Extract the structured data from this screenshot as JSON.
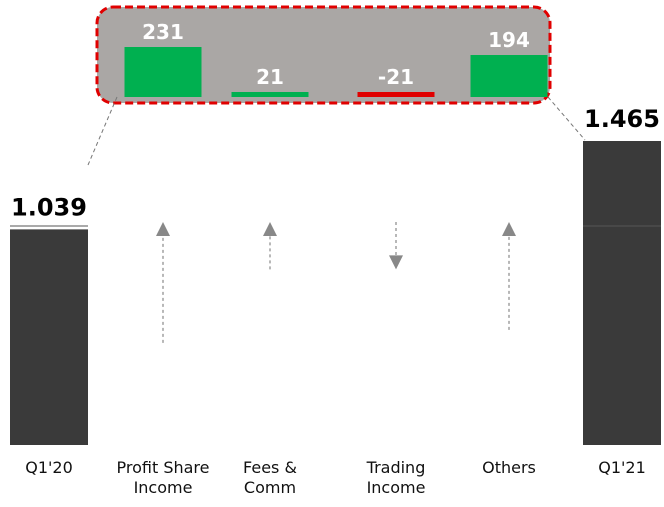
{
  "chart_data": {
    "type": "waterfall",
    "categories": [
      "Q1'20",
      "Profit Share Income",
      "Fees & Comm",
      "Trading Income",
      "Others",
      "Q1'21"
    ],
    "values": [
      1039,
      231,
      21,
      -21,
      194,
      1465
    ],
    "value_labels": [
      "1.039",
      "231",
      "21",
      "-21",
      "194",
      "1.465"
    ],
    "colors": {
      "total": "#3a3a3a",
      "increase": "#00b050",
      "decrease": "#e00000"
    }
  }
}
